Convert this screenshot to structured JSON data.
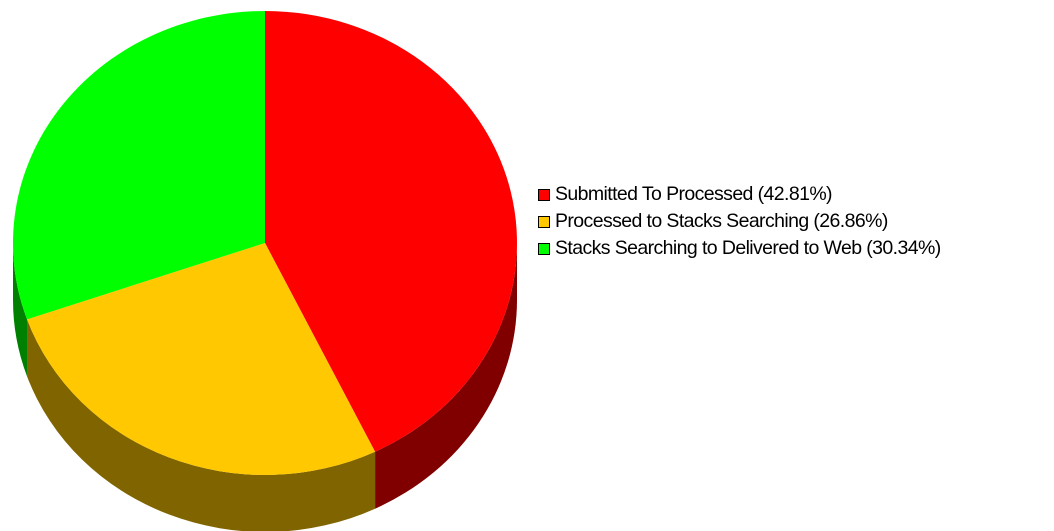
{
  "chart_data": {
    "type": "pie",
    "style": "3d",
    "start_angle_deg": 0,
    "direction": "clockwise",
    "legend_position": "right",
    "title": "",
    "slices": [
      {
        "label": "Submitted To Processed (42.81%)",
        "value": 42.81,
        "color": "#ff0000",
        "side_color": "#800000"
      },
      {
        "label": "Processed to Stacks Searching (26.86%)",
        "value": 26.86,
        "color": "#ffc800",
        "side_color": "#806400"
      },
      {
        "label": "Stacks Searching to Delivered to Web (30.34%)",
        "value": 30.34,
        "color": "#00ff00",
        "side_color": "#008000"
      }
    ]
  }
}
